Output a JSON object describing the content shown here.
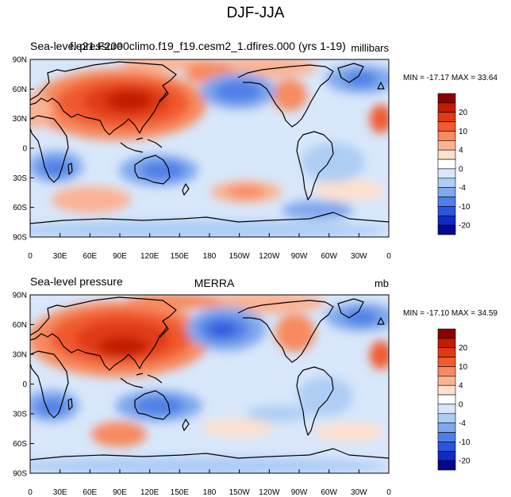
{
  "figure": {
    "title": "DJF-JJA"
  },
  "panels": [
    {
      "left_label": "Sea-level pressure",
      "center_label": "f.e21.F2000climo.f19_f19.cesm2_1.dfires.000 (yrs 1-19)",
      "right_label": "millibars",
      "stats": "MIN = -17.17 MAX =  33.64"
    },
    {
      "left_label": "Sea-level pressure",
      "center_label": "MERRA",
      "right_label": "mb",
      "stats": "MIN = -17.10 MAX =  34.59"
    }
  ],
  "axes": {
    "lat_ticks": [
      "90N",
      "60N",
      "30N",
      "0",
      "30S",
      "60S",
      "90S"
    ],
    "lon_ticks": [
      "0",
      "30E",
      "60E",
      "90E",
      "120E",
      "150E",
      "180",
      "150W",
      "120W",
      "90W",
      "60W",
      "30W",
      "0"
    ]
  },
  "colorbar": {
    "labels": [
      "20",
      "10",
      "4",
      "0",
      "-4",
      "-10",
      "-20"
    ],
    "colors": [
      "#8B0000",
      "#C21B00",
      "#E03A12",
      "#F05A2E",
      "#F88A5F",
      "#FBB394",
      "#FDE0CF",
      "#FFFFFF",
      "#D8E7FA",
      "#AECDF5",
      "#7FA8EE",
      "#4F7FE6",
      "#2A55DC",
      "#0E2BC4",
      "#020A8F"
    ]
  },
  "colors": {
    "land_outline": "#000000",
    "frame": "#000000",
    "high_pressure": "#C21B00",
    "low_pressure": "#2A55DC"
  }
}
